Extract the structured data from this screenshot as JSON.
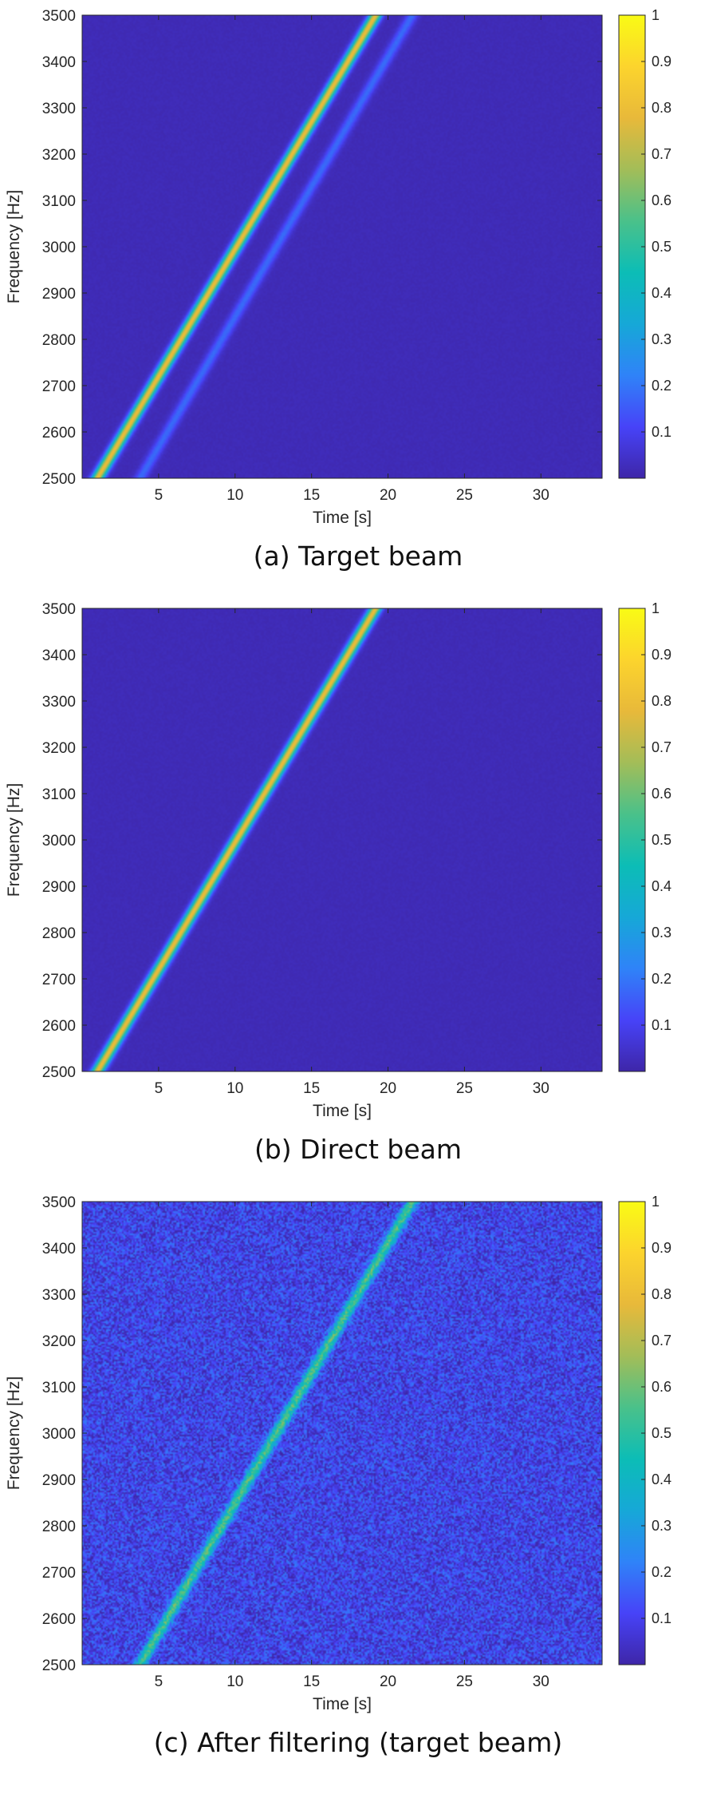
{
  "chart_data": [
    {
      "type": "heatmap",
      "caption": "(a) Target beam",
      "xlabel": "Time [s]",
      "ylabel": "Frequency [Hz]",
      "xlim": [
        0,
        34
      ],
      "ylim": [
        2500,
        3500
      ],
      "xticks": [
        5,
        10,
        15,
        20,
        25,
        30
      ],
      "yticks": [
        2500,
        2600,
        2700,
        2800,
        2900,
        3000,
        3100,
        3200,
        3300,
        3400,
        3500
      ],
      "colorbar": {
        "min": 0,
        "max": 1,
        "ticks": [
          0.1,
          0.2,
          0.3,
          0.4,
          0.5,
          0.6,
          0.7,
          0.8,
          0.9,
          1
        ]
      },
      "colormap": [
        "#3e26a8",
        "#4743f8",
        "#2f83f8",
        "#16a8d7",
        "#0cbdb6",
        "#4ac18a",
        "#a3bd58",
        "#e8b93a",
        "#fcd42d",
        "#f9fb15"
      ],
      "background_level": 0.02,
      "noise": 0.005,
      "chirps": [
        {
          "t_start": 1.0,
          "f_start": 2500,
          "t_end": 19.2,
          "f_end": 3500,
          "intensity": 0.78
        },
        {
          "t_start": 3.8,
          "f_start": 2500,
          "t_end": 21.6,
          "f_end": 3500,
          "intensity": 0.16
        }
      ]
    },
    {
      "type": "heatmap",
      "caption": "(b) Direct beam",
      "xlabel": "Time [s]",
      "ylabel": "Frequency [Hz]",
      "xlim": [
        0,
        34
      ],
      "ylim": [
        2500,
        3500
      ],
      "xticks": [
        5,
        10,
        15,
        20,
        25,
        30
      ],
      "yticks": [
        2500,
        2600,
        2700,
        2800,
        2900,
        3000,
        3100,
        3200,
        3300,
        3400,
        3500
      ],
      "colorbar": {
        "min": 0,
        "max": 1,
        "ticks": [
          0.1,
          0.2,
          0.3,
          0.4,
          0.5,
          0.6,
          0.7,
          0.8,
          0.9,
          1
        ]
      },
      "colormap": [
        "#3e26a8",
        "#4743f8",
        "#2f83f8",
        "#16a8d7",
        "#0cbdb6",
        "#4ac18a",
        "#a3bd58",
        "#e8b93a",
        "#fcd42d",
        "#f9fb15"
      ],
      "background_level": 0.02,
      "noise": 0.005,
      "chirps": [
        {
          "t_start": 1.0,
          "f_start": 2500,
          "t_end": 19.2,
          "f_end": 3500,
          "intensity": 0.78
        }
      ]
    },
    {
      "type": "heatmap",
      "caption": "(c) After filtering (target beam)",
      "xlabel": "Time [s]",
      "ylabel": "Frequency [Hz]",
      "xlim": [
        0,
        34
      ],
      "ylim": [
        2500,
        3500
      ],
      "xticks": [
        5,
        10,
        15,
        20,
        25,
        30
      ],
      "yticks": [
        2500,
        2600,
        2700,
        2800,
        2900,
        3000,
        3100,
        3200,
        3300,
        3400,
        3500
      ],
      "colorbar": {
        "min": 0,
        "max": 1,
        "ticks": [
          0.1,
          0.2,
          0.3,
          0.4,
          0.5,
          0.6,
          0.7,
          0.8,
          0.9,
          1
        ]
      },
      "colormap": [
        "#3e26a8",
        "#4743f8",
        "#2f83f8",
        "#16a8d7",
        "#0cbdb6",
        "#4ac18a",
        "#a3bd58",
        "#e8b93a",
        "#fcd42d",
        "#f9fb15"
      ],
      "background_level": 0.1,
      "noise": 0.07,
      "chirps": [
        {
          "t_start": 3.8,
          "f_start": 2500,
          "t_end": 21.6,
          "f_end": 3500,
          "intensity": 0.45
        }
      ]
    }
  ]
}
